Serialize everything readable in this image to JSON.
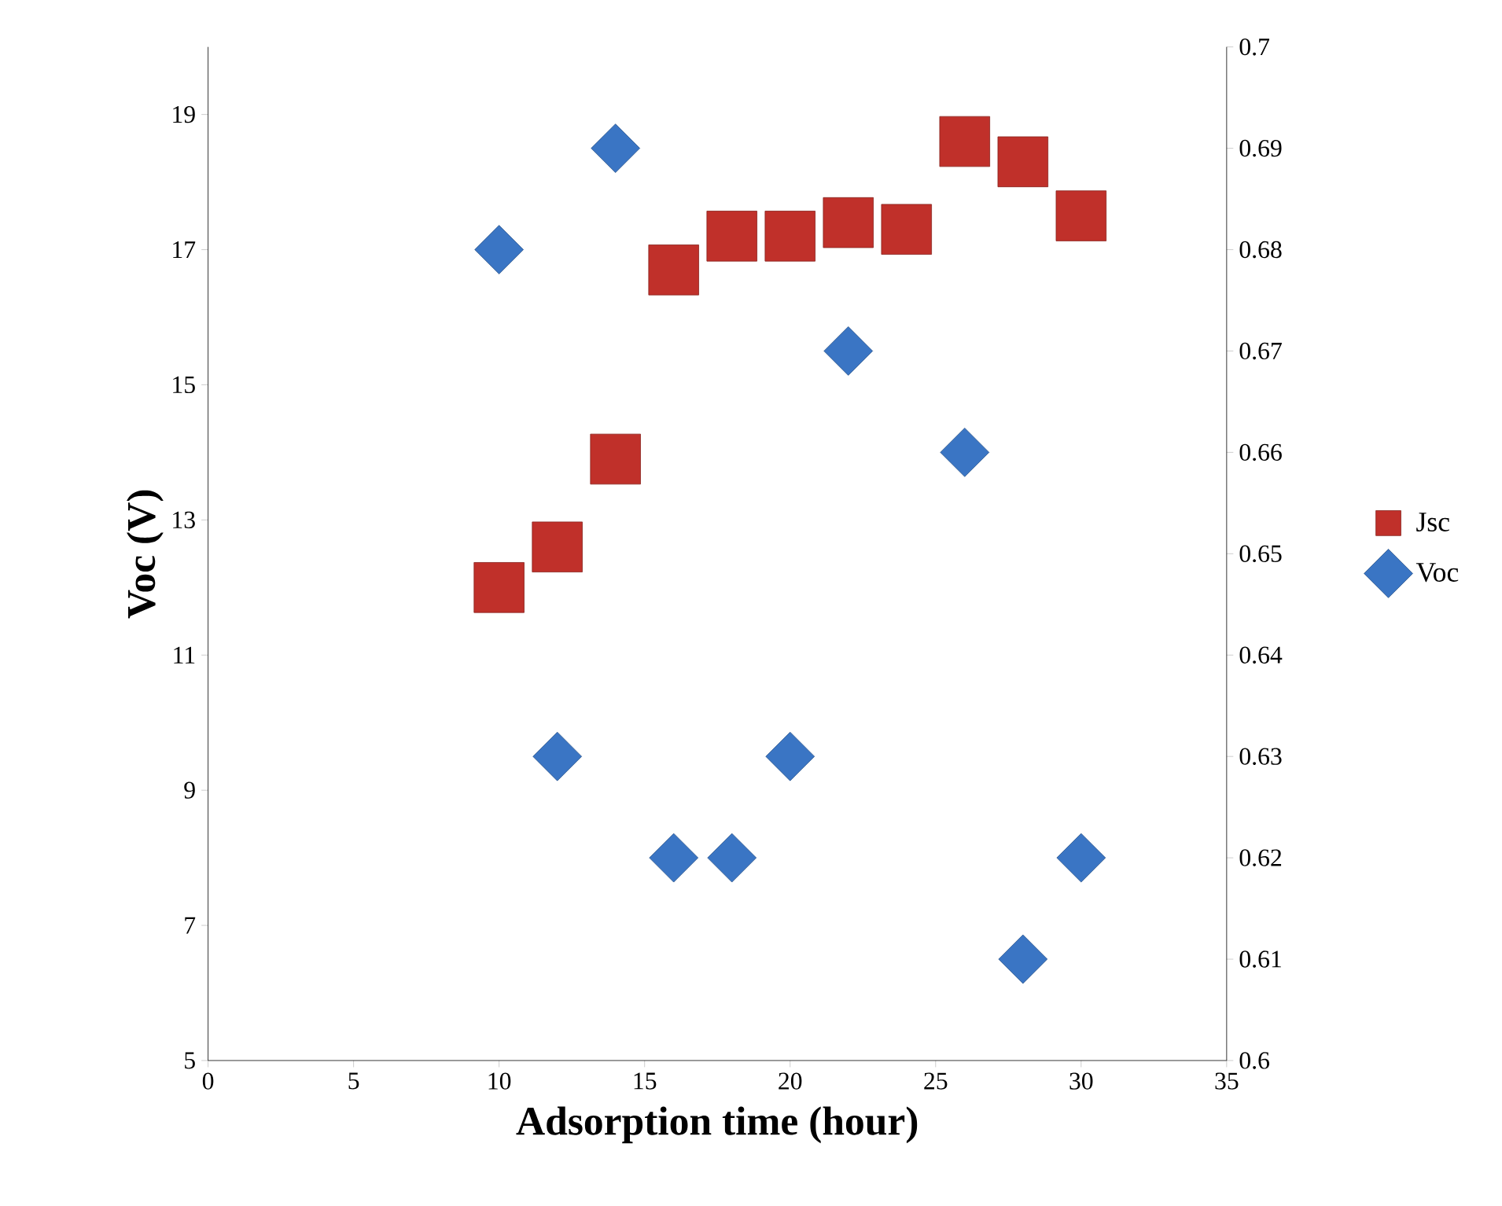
{
  "chart_data": {
    "type": "scatter",
    "xlabel": "Adsorption time (hour)",
    "ylabel": "Voc (V)",
    "xlim": [
      0,
      35
    ],
    "xticks": [
      0,
      5,
      10,
      15,
      20,
      25,
      30,
      35
    ],
    "ylim": [
      5,
      20
    ],
    "yticks": [
      5,
      7,
      9,
      11,
      13,
      15,
      17,
      19
    ],
    "y2lim": [
      0.6,
      0.7
    ],
    "y2ticks": [
      0.6,
      0.61,
      0.62,
      0.63,
      0.64,
      0.65,
      0.66,
      0.67,
      0.68,
      0.69,
      0.7
    ],
    "legend": "right",
    "grid": false,
    "series": [
      {
        "name": "Jsc",
        "color": "#c0302a",
        "marker": "square",
        "x": [
          10,
          12,
          14,
          16,
          18,
          20,
          22,
          24,
          26,
          28,
          30
        ],
        "values": [
          12.0,
          12.6,
          13.9,
          16.7,
          17.2,
          17.2,
          17.4,
          17.3,
          18.6,
          18.3,
          17.5
        ]
      },
      {
        "name": "Voc",
        "color": "#3a75c4",
        "marker": "diamond",
        "axis": "y2",
        "x": [
          10,
          12,
          14,
          16,
          18,
          20,
          22,
          26,
          28,
          30
        ],
        "values": [
          0.68,
          0.63,
          0.69,
          0.62,
          0.62,
          0.63,
          0.67,
          0.66,
          0.61,
          0.62
        ]
      }
    ]
  }
}
